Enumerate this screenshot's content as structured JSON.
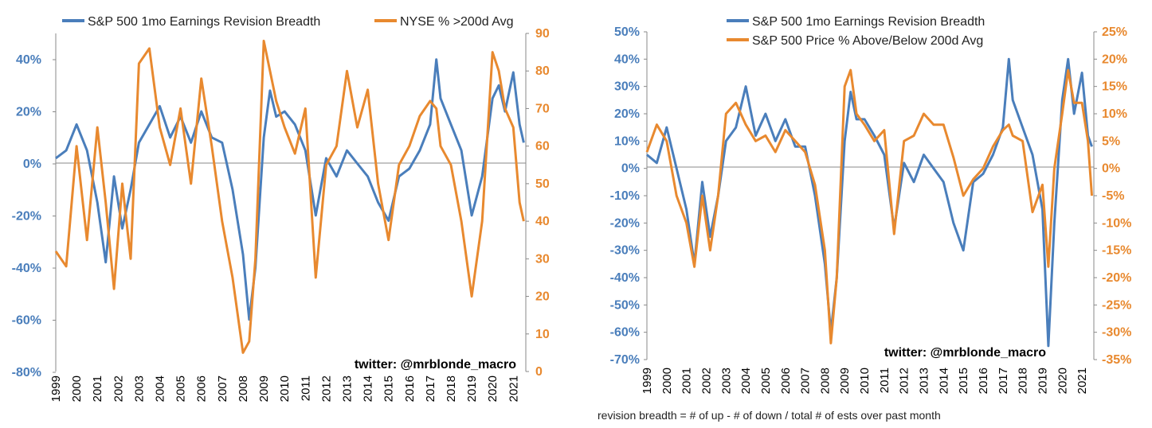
{
  "chart_data": [
    {
      "type": "line",
      "title": "",
      "legend_position": "top",
      "watermark": "twitter: @mrblonde_macro",
      "x_ticks": [
        "1999",
        "2000",
        "2001",
        "2002",
        "2003",
        "2004",
        "2005",
        "2006",
        "2007",
        "2008",
        "2009",
        "2010",
        "2011",
        "2012",
        "2013",
        "2014",
        "2015",
        "2016",
        "2017",
        "2018",
        "2019",
        "2020",
        "2021"
      ],
      "xlim": [
        1999,
        2021.6
      ],
      "y_left": {
        "ticks": [
          "40%",
          "20%",
          "0%",
          "-20%",
          "-40%",
          "-60%",
          "-80%"
        ],
        "ylim": [
          -80,
          50
        ],
        "color": "#4a7ebb"
      },
      "y_right": {
        "ticks": [
          "90",
          "80",
          "70",
          "60",
          "50",
          "40",
          "30",
          "20",
          "10",
          "0"
        ],
        "ylim": [
          0,
          90
        ],
        "color": "#e8892f"
      },
      "series": [
        {
          "name": "S&P 500 1mo Earnings Revision Breadth",
          "axis": "left",
          "color": "#4a7ebb",
          "x": [
            1999.0,
            1999.5,
            2000.0,
            2000.5,
            2001.0,
            2001.4,
            2001.8,
            2002.2,
            2002.6,
            2003.0,
            2003.5,
            2004.0,
            2004.5,
            2005.0,
            2005.5,
            2006.0,
            2006.5,
            2007.0,
            2007.5,
            2008.0,
            2008.3,
            2008.6,
            2009.0,
            2009.3,
            2009.6,
            2010.0,
            2010.5,
            2011.0,
            2011.5,
            2012.0,
            2012.5,
            2013.0,
            2013.5,
            2014.0,
            2014.5,
            2015.0,
            2015.5,
            2016.0,
            2016.5,
            2017.0,
            2017.3,
            2017.5,
            2018.0,
            2018.5,
            2019.0,
            2019.5,
            2020.0,
            2020.3,
            2020.6,
            2021.0,
            2021.3,
            2021.5
          ],
          "y": [
            2,
            5,
            15,
            5,
            -15,
            -38,
            -5,
            -25,
            -10,
            8,
            15,
            22,
            10,
            18,
            8,
            20,
            10,
            8,
            -10,
            -35,
            -60,
            -40,
            10,
            28,
            18,
            20,
            15,
            5,
            -20,
            2,
            -5,
            5,
            0,
            -5,
            -15,
            -22,
            -5,
            -2,
            5,
            15,
            40,
            25,
            15,
            5,
            -20,
            -5,
            25,
            30,
            20,
            35,
            15,
            8
          ]
        },
        {
          "name": "NYSE % >200d Avg",
          "axis": "right",
          "color": "#e8892f",
          "x": [
            1999.0,
            1999.5,
            2000.0,
            2000.5,
            2001.0,
            2001.4,
            2001.8,
            2002.2,
            2002.6,
            2003.0,
            2003.5,
            2004.0,
            2004.5,
            2005.0,
            2005.5,
            2006.0,
            2006.5,
            2007.0,
            2007.5,
            2008.0,
            2008.3,
            2008.6,
            2009.0,
            2009.3,
            2009.6,
            2010.0,
            2010.5,
            2011.0,
            2011.5,
            2012.0,
            2012.5,
            2013.0,
            2013.5,
            2014.0,
            2014.5,
            2015.0,
            2015.5,
            2016.0,
            2016.5,
            2017.0,
            2017.3,
            2017.5,
            2018.0,
            2018.5,
            2019.0,
            2019.5,
            2020.0,
            2020.3,
            2020.6,
            2021.0,
            2021.3,
            2021.5
          ],
          "y": [
            32,
            28,
            60,
            35,
            65,
            45,
            22,
            50,
            30,
            82,
            86,
            65,
            55,
            70,
            50,
            78,
            60,
            40,
            25,
            5,
            8,
            30,
            88,
            80,
            72,
            65,
            58,
            70,
            25,
            55,
            60,
            80,
            65,
            75,
            50,
            35,
            55,
            60,
            68,
            72,
            70,
            60,
            55,
            40,
            20,
            40,
            85,
            80,
            70,
            65,
            45,
            40
          ]
        }
      ]
    },
    {
      "type": "line",
      "title": "",
      "legend_position": "top",
      "watermark": "twitter: @mrblonde_macro",
      "footnote": "revision breadth = # of up - # of down / total # of ests over past month",
      "x_ticks": [
        "1999",
        "2000",
        "2001",
        "2002",
        "2003",
        "2004",
        "2005",
        "2006",
        "2007",
        "2008",
        "2009",
        "2010",
        "2011",
        "2012",
        "2013",
        "2014",
        "2015",
        "2016",
        "2017",
        "2018",
        "2019",
        "2020",
        "2021"
      ],
      "xlim": [
        1999,
        2021.6
      ],
      "y_left": {
        "ticks": [
          "50%",
          "40%",
          "30%",
          "20%",
          "10%",
          "0%",
          "-10%",
          "-20%",
          "-30%",
          "-40%",
          "-50%",
          "-60%",
          "-70%"
        ],
        "ylim": [
          -70,
          50
        ],
        "color": "#4a7ebb"
      },
      "y_right": {
        "ticks": [
          "25%",
          "20%",
          "15%",
          "10%",
          "5%",
          "0%",
          "-5%",
          "-10%",
          "-15%",
          "-20%",
          "-25%",
          "-30%",
          "-35%"
        ],
        "ylim": [
          -35,
          25
        ],
        "color": "#e8892f"
      },
      "series": [
        {
          "name": "S&P 500 1mo Earnings Revision Breadth",
          "axis": "left",
          "color": "#4a7ebb",
          "x": [
            1999.0,
            1999.5,
            2000.0,
            2000.5,
            2001.0,
            2001.4,
            2001.8,
            2002.2,
            2002.6,
            2003.0,
            2003.5,
            2004.0,
            2004.5,
            2005.0,
            2005.5,
            2006.0,
            2006.5,
            2007.0,
            2007.5,
            2008.0,
            2008.3,
            2008.6,
            2009.0,
            2009.3,
            2009.6,
            2010.0,
            2010.5,
            2011.0,
            2011.5,
            2012.0,
            2012.5,
            2013.0,
            2013.5,
            2014.0,
            2014.5,
            2015.0,
            2015.5,
            2016.0,
            2016.5,
            2017.0,
            2017.3,
            2017.5,
            2018.0,
            2018.5,
            2019.0,
            2019.3,
            2019.6,
            2020.0,
            2020.3,
            2020.6,
            2021.0,
            2021.3,
            2021.5
          ],
          "y": [
            5,
            2,
            15,
            0,
            -15,
            -35,
            -5,
            -25,
            -10,
            10,
            15,
            30,
            12,
            20,
            10,
            18,
            8,
            8,
            -10,
            -35,
            -60,
            -40,
            10,
            28,
            18,
            18,
            12,
            5,
            -22,
            2,
            -5,
            5,
            0,
            -5,
            -20,
            -30,
            -5,
            -2,
            5,
            15,
            40,
            25,
            15,
            5,
            -15,
            -65,
            -20,
            25,
            40,
            20,
            35,
            12,
            8
          ]
        },
        {
          "name": "S&P 500 Price % Above/Below 200d Avg",
          "axis": "right",
          "color": "#e8892f",
          "x": [
            1999.0,
            1999.5,
            2000.0,
            2000.5,
            2001.0,
            2001.4,
            2001.8,
            2002.2,
            2002.6,
            2003.0,
            2003.5,
            2004.0,
            2004.5,
            2005.0,
            2005.5,
            2006.0,
            2006.5,
            2007.0,
            2007.5,
            2008.0,
            2008.3,
            2008.6,
            2009.0,
            2009.3,
            2009.6,
            2010.0,
            2010.5,
            2011.0,
            2011.5,
            2012.0,
            2012.5,
            2013.0,
            2013.5,
            2014.0,
            2014.5,
            2015.0,
            2015.5,
            2016.0,
            2016.5,
            2017.0,
            2017.3,
            2017.5,
            2018.0,
            2018.5,
            2019.0,
            2019.3,
            2019.6,
            2020.0,
            2020.3,
            2020.6,
            2021.0,
            2021.3,
            2021.5
          ],
          "y": [
            3,
            8,
            5,
            -5,
            -10,
            -18,
            -5,
            -15,
            -5,
            10,
            12,
            8,
            5,
            6,
            3,
            7,
            5,
            3,
            -3,
            -15,
            -32,
            -20,
            15,
            18,
            10,
            8,
            5,
            7,
            -12,
            5,
            6,
            10,
            8,
            8,
            2,
            -5,
            -2,
            0,
            4,
            7,
            8,
            6,
            5,
            -8,
            -3,
            -18,
            0,
            10,
            18,
            12,
            12,
            5,
            -5
          ]
        }
      ]
    }
  ]
}
